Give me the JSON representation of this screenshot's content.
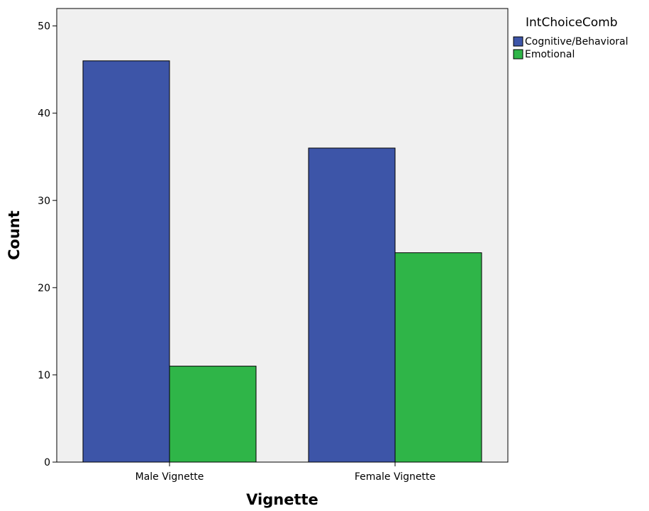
{
  "chart_data": {
    "type": "bar",
    "xlabel": "Vignette",
    "ylabel": "Count",
    "categories": [
      "Male Vignette",
      "Female Vignette"
    ],
    "series": [
      {
        "name": "Cognitive/Behavioral",
        "color": "#3d55a8",
        "values": [
          46,
          36
        ]
      },
      {
        "name": "Emotional",
        "color": "#2fb548",
        "values": [
          11,
          24
        ]
      }
    ],
    "ylim": [
      0,
      52
    ],
    "yticks": [
      0,
      10,
      20,
      30,
      40,
      50
    ],
    "grid": false,
    "legend": {
      "title": "IntChoiceComb",
      "placement": "top-right outside"
    },
    "plot_background": "#f0f0f0"
  }
}
